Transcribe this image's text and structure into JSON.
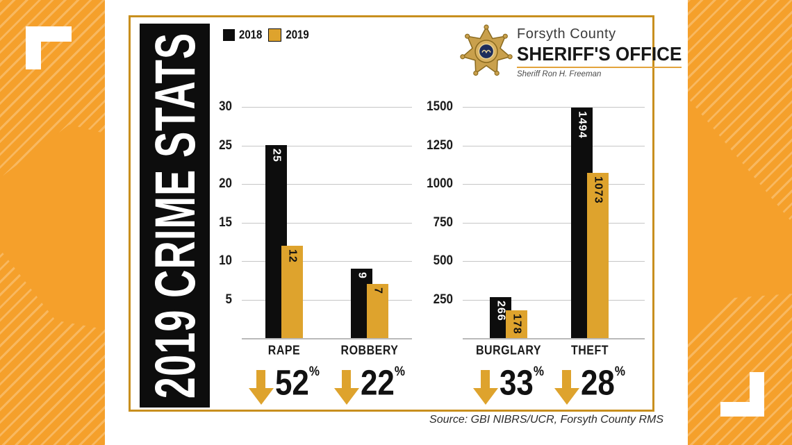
{
  "sidebar": {
    "title": "2019 CRIME STATS"
  },
  "legend": {
    "items": [
      {
        "label": "2018",
        "color": "#0d0d0d"
      },
      {
        "label": "2019",
        "color": "#DEA32D"
      }
    ]
  },
  "logo": {
    "line1": "Forsyth County",
    "line2": "SHERIFF'S OFFICE",
    "line3": "Sheriff Ron H. Freeman",
    "badge_icon": "sheriff-star-badge",
    "accent_color": "#E3A33B"
  },
  "source": "Source: GBI NIBRS/UCR, Forsyth County RMS",
  "colors": {
    "band_orange": "#F5A02B",
    "bar_2018": "#0d0d0d",
    "bar_2019": "#DEA32D",
    "card_border_gold": "#C88F1E",
    "gridline": "#c6c6c6"
  },
  "chart_data": [
    {
      "type": "bar",
      "categories": [
        "RAPE",
        "ROBBERY"
      ],
      "series": [
        {
          "name": "2018",
          "values": [
            25,
            9
          ]
        },
        {
          "name": "2019",
          "values": [
            12,
            7
          ]
        }
      ],
      "yticks": [
        5,
        10,
        15,
        20,
        25,
        30
      ],
      "ylim": [
        0,
        30
      ],
      "grid": true,
      "legend_position": "top-left",
      "pct_change": [
        52,
        22
      ],
      "pct_direction": "down"
    },
    {
      "type": "bar",
      "categories": [
        "BURGLARY",
        "THEFT"
      ],
      "series": [
        {
          "name": "2018",
          "values": [
            266,
            1494
          ]
        },
        {
          "name": "2019",
          "values": [
            178,
            1073
          ]
        }
      ],
      "yticks": [
        250,
        500,
        750,
        1000,
        1250,
        1500
      ],
      "ylim": [
        0,
        1500
      ],
      "grid": true,
      "legend_position": "top-left",
      "pct_change": [
        33,
        28
      ],
      "pct_direction": "down"
    }
  ]
}
